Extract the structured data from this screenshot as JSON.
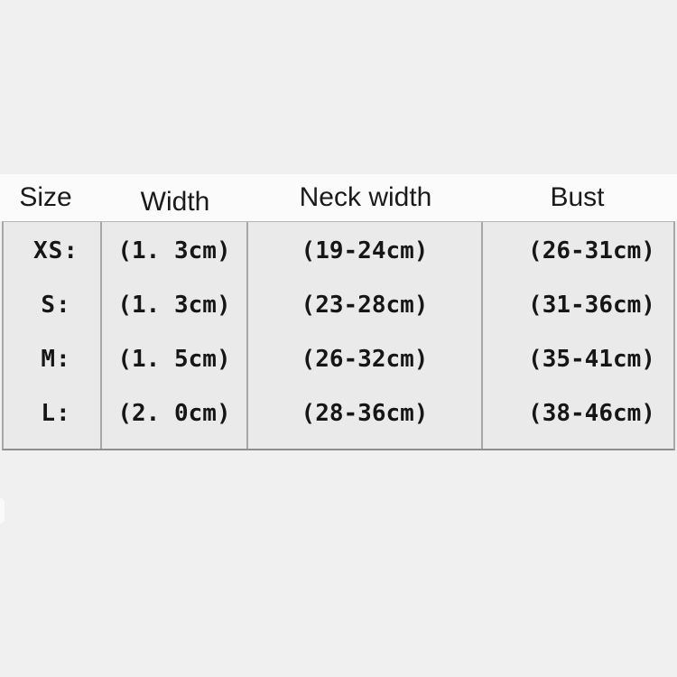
{
  "chart_data": {
    "type": "table",
    "columns": [
      "Size",
      "Width",
      "Neck width",
      "Bust"
    ],
    "rows": [
      [
        "XS:",
        "(1. 3cm)",
        "(19-24cm)",
        "(26-31cm)"
      ],
      [
        "S:",
        "(1. 3cm)",
        "(23-28cm)",
        "(31-36cm)"
      ],
      [
        "M:",
        "(1. 5cm)",
        "(26-32cm)",
        "(35-41cm)"
      ],
      [
        "L:",
        "(2. 0cm)",
        "(28-36cm)",
        "(38-46cm)"
      ]
    ],
    "units": "cm",
    "grid": "vertical-dividers-only",
    "legend": "none"
  },
  "colors": {
    "page_background": "#f1f0f0",
    "header_background": "#fcfbfb",
    "cell_background": "#ebeaeb",
    "table_border": "#a8a6a8",
    "table_border_bottom": "#8f8d8f",
    "text": "#161616"
  }
}
